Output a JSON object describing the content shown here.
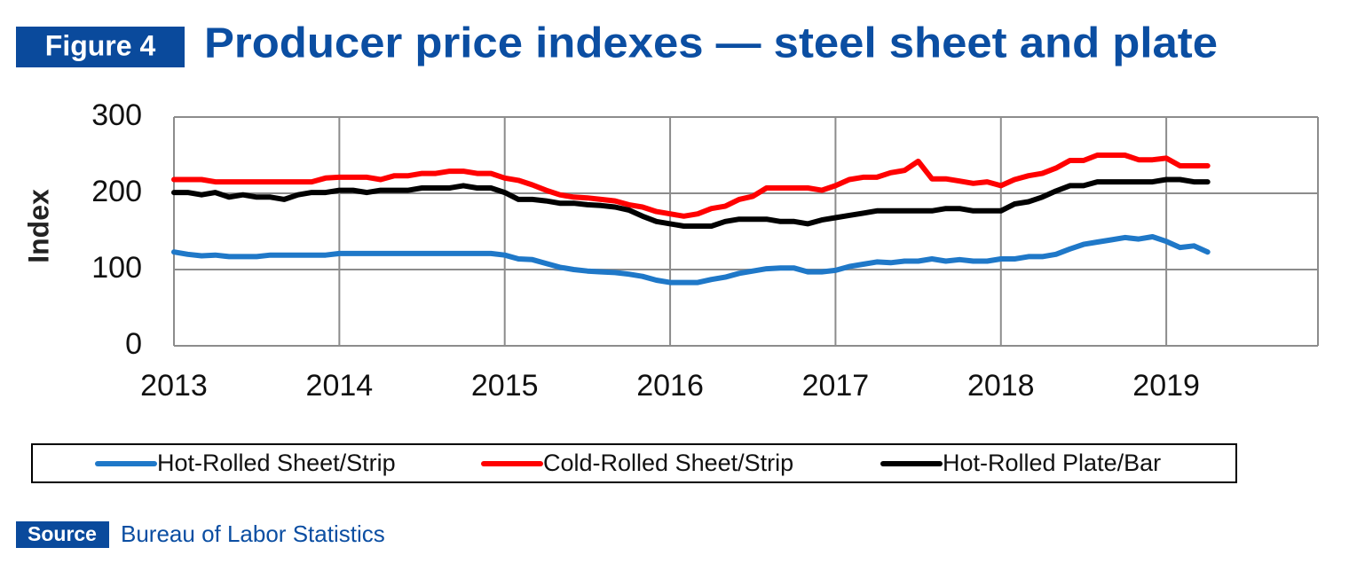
{
  "chart_data": {
    "type": "line",
    "figure_label": "Figure 4",
    "title": "Producer price indexes — steel sheet and plate",
    "y_label": "Index",
    "source_label": "Source",
    "source": "Bureau of Labor Statistics",
    "xlim": [
      2013,
      2019.917
    ],
    "xticks": [
      2013,
      2014,
      2015,
      2016,
      2017,
      2018,
      2019
    ],
    "ylim": [
      0,
      300
    ],
    "yticks": [
      0,
      100,
      200,
      300
    ],
    "grid": true,
    "legend": "bottom",
    "x": [
      2013,
      2013.083,
      2013.167,
      2013.25,
      2013.333,
      2013.417,
      2013.5,
      2013.583,
      2013.667,
      2013.75,
      2013.833,
      2013.917,
      2014,
      2014.083,
      2014.167,
      2014.25,
      2014.333,
      2014.417,
      2014.5,
      2014.583,
      2014.667,
      2014.75,
      2014.833,
      2014.917,
      2015,
      2015.083,
      2015.167,
      2015.25,
      2015.333,
      2015.417,
      2015.5,
      2015.583,
      2015.667,
      2015.75,
      2015.833,
      2015.917,
      2016,
      2016.083,
      2016.167,
      2016.25,
      2016.333,
      2016.417,
      2016.5,
      2016.583,
      2016.667,
      2016.75,
      2016.833,
      2016.917,
      2017,
      2017.083,
      2017.167,
      2017.25,
      2017.333,
      2017.417,
      2017.5,
      2017.583,
      2017.667,
      2017.75,
      2017.833,
      2017.917,
      2018,
      2018.083,
      2018.167,
      2018.25,
      2018.333,
      2018.417,
      2018.5,
      2018.583,
      2018.667,
      2018.75,
      2018.833,
      2018.917,
      2019,
      2019.083,
      2019.167,
      2019.25
    ],
    "series": [
      {
        "name": "Hot-Rolled Sheet/Strip",
        "color": "#1f78c8",
        "values": [
          123,
          120,
          118,
          119,
          117,
          117,
          117,
          119,
          119,
          119,
          119,
          119,
          121,
          121,
          121,
          121,
          121,
          121,
          121,
          121,
          121,
          121,
          121,
          121,
          119,
          114,
          113,
          108,
          103,
          100,
          98,
          97,
          96,
          94,
          91,
          86,
          83,
          83,
          83,
          87,
          90,
          95,
          98,
          101,
          102,
          102,
          97,
          97,
          99,
          104,
          107,
          110,
          109,
          111,
          111,
          114,
          111,
          113,
          111,
          111,
          114,
          114,
          117,
          117,
          120,
          127,
          133,
          136,
          139,
          142,
          140,
          143,
          137,
          129,
          131,
          123
        ]
      },
      {
        "name": "Cold-Rolled Sheet/Strip",
        "color": "#ff0000",
        "values": [
          218,
          218,
          218,
          215,
          215,
          215,
          215,
          215,
          215,
          215,
          215,
          220,
          221,
          221,
          221,
          218,
          223,
          223,
          226,
          226,
          229,
          229,
          226,
          226,
          220,
          217,
          211,
          204,
          198,
          195,
          194,
          192,
          190,
          185,
          182,
          176,
          173,
          170,
          173,
          180,
          183,
          192,
          196,
          207,
          207,
          207,
          207,
          204,
          210,
          218,
          221,
          221,
          227,
          230,
          242,
          219,
          219,
          216,
          213,
          215,
          210,
          218,
          223,
          226,
          233,
          243,
          243,
          250,
          250,
          250,
          244,
          244,
          246,
          236,
          236,
          236
        ]
      },
      {
        "name": "Hot-Rolled Plate/Bar",
        "color": "#000000",
        "values": [
          201,
          201,
          198,
          201,
          195,
          198,
          195,
          195,
          192,
          198,
          201,
          201,
          204,
          204,
          201,
          204,
          204,
          204,
          207,
          207,
          207,
          210,
          207,
          207,
          201,
          192,
          192,
          190,
          187,
          187,
          185,
          184,
          182,
          178,
          170,
          163,
          160,
          157,
          157,
          157,
          163,
          166,
          166,
          166,
          163,
          163,
          160,
          165,
          168,
          171,
          174,
          177,
          177,
          177,
          177,
          177,
          180,
          180,
          177,
          177,
          177,
          186,
          189,
          195,
          203,
          210,
          210,
          215,
          215,
          215,
          215,
          215,
          218,
          218,
          215,
          215
        ]
      }
    ]
  }
}
